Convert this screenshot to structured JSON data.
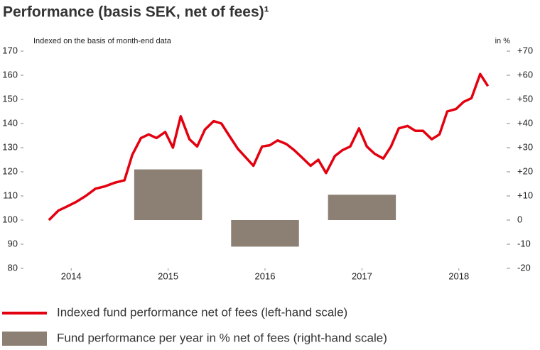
{
  "chart_data": {
    "type": "combo",
    "title": "Performance (basis SEK, net of fees)¹",
    "subtitle": "Indexed on the basis of month-end data",
    "y2_unit": "in %",
    "xlim": [
      2014,
      2019
    ],
    "xticks": [
      {
        "value": 2014.5,
        "label": "2014"
      },
      {
        "value": 2015.5,
        "label": "2015"
      },
      {
        "value": 2016.5,
        "label": "2016"
      },
      {
        "value": 2017.5,
        "label": "2017"
      },
      {
        "value": 2018.5,
        "label": "2018"
      }
    ],
    "ylim": [
      80,
      170
    ],
    "yticks": [
      80,
      90,
      100,
      110,
      120,
      130,
      140,
      150,
      160,
      170
    ],
    "y2lim": [
      -20,
      70
    ],
    "y2ticks": [
      -20,
      -10,
      0,
      {
        "value": 10,
        "label": "+10"
      },
      {
        "value": 20,
        "label": "+20"
      },
      {
        "value": 30,
        "label": "+30"
      },
      {
        "value": 40,
        "label": "+40"
      },
      {
        "value": 50,
        "label": "+50"
      },
      {
        "value": 60,
        "label": "+60"
      },
      {
        "value": 70,
        "label": "+70"
      }
    ],
    "grid": false,
    "series": [
      {
        "name": "Fund performance per year in % net of fees (right-hand scale)",
        "type": "bar",
        "axis": "y2",
        "color": "#8c7f73",
        "x": [
          2015.5,
          2016.5,
          2017.5
        ],
        "values": [
          21,
          -11,
          10.5
        ]
      },
      {
        "name": "Indexed fund performance net of fees (left-hand scale)",
        "type": "line",
        "color": "#e3000f",
        "x": [
          2014.27,
          2014.37,
          2014.45,
          2014.55,
          2014.65,
          2014.75,
          2014.85,
          2014.95,
          2015.05,
          2015.13,
          2015.22,
          2015.3,
          2015.38,
          2015.47,
          2015.55,
          2015.63,
          2015.72,
          2015.8,
          2015.88,
          2015.97,
          2016.05,
          2016.13,
          2016.22,
          2016.3,
          2016.38,
          2016.47,
          2016.55,
          2016.63,
          2016.72,
          2016.8,
          2016.88,
          2016.97,
          2017.05,
          2017.13,
          2017.22,
          2017.3,
          2017.38,
          2017.47,
          2017.55,
          2017.63,
          2017.72,
          2017.8,
          2017.88,
          2017.97,
          2018.05,
          2018.13,
          2018.22,
          2018.3,
          2018.38,
          2018.47,
          2018.55,
          2018.63,
          2018.72,
          2018.8
        ],
        "values": [
          100,
          104,
          105.5,
          107.5,
          110,
          113,
          114,
          115.5,
          116.5,
          127,
          134,
          135.5,
          134,
          136.5,
          130,
          143,
          133.5,
          130.5,
          137.5,
          141,
          140,
          135,
          129.5,
          126,
          122.5,
          130.5,
          131,
          133,
          131.5,
          129,
          126,
          122.5,
          125,
          119.5,
          126.5,
          129,
          130.5,
          138,
          130.5,
          127.5,
          125.5,
          130.5,
          138,
          139,
          137,
          137,
          133.5,
          135.5,
          145,
          146,
          149,
          150.5,
          160.5,
          155.5
        ]
      }
    ]
  }
}
